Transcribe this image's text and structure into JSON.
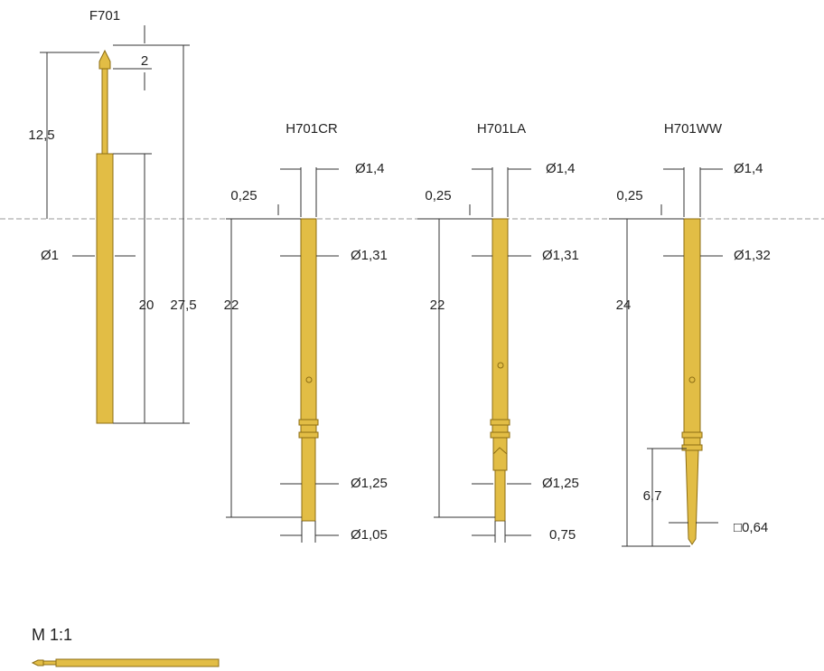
{
  "parts": [
    {
      "name": "F701",
      "dims": [
        "2",
        "12,5",
        "Ø1",
        "20",
        "27,5"
      ]
    },
    {
      "name": "H701CR",
      "dims": [
        "Ø1,4",
        "0,25",
        "Ø1,31",
        "22",
        "Ø1,25",
        "Ø1,05"
      ]
    },
    {
      "name": "H701LA",
      "dims": [
        "Ø1,4",
        "0,25",
        "Ø1,31",
        "22",
        "Ø1,25",
        "0,75"
      ]
    },
    {
      "name": "H701WW",
      "dims": [
        "Ø1,4",
        "0,25",
        "Ø1,32",
        "24",
        "6,7",
        "□0,64"
      ]
    }
  ],
  "scale": "M 1:1"
}
